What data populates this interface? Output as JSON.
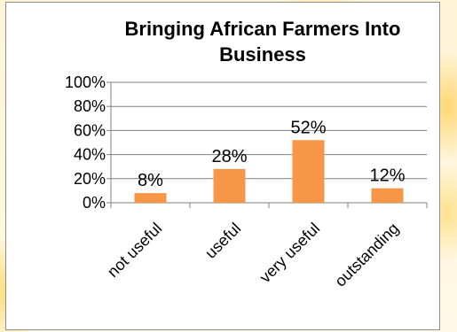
{
  "chart_data": {
    "type": "bar",
    "title": "Bringing African Farmers Into Business",
    "title_lines": [
      "Bringing African Farmers Into",
      "Business"
    ],
    "categories": [
      "not useful",
      "useful",
      "very useful",
      "outstanding"
    ],
    "values": [
      8,
      28,
      52,
      12
    ],
    "data_labels": [
      "8%",
      "28%",
      "52%",
      "12%"
    ],
    "ylim": [
      0,
      100
    ],
    "yticks": [
      0,
      20,
      40,
      60,
      80,
      100
    ],
    "ytick_labels": [
      "0%",
      "20%",
      "40%",
      "60%",
      "80%",
      "100%"
    ],
    "xlabel": "",
    "ylabel": "",
    "grid": true,
    "legend": false,
    "bar_color": "#f79646"
  }
}
